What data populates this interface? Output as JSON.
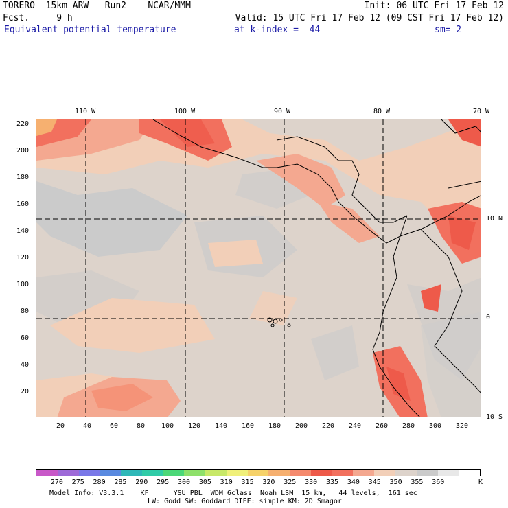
{
  "header": {
    "line1_left": "TORERO  15km ARW   Run2    NCAR/MMM",
    "line1_right": "Init: 06 UTC Fri 17 Feb 12",
    "line2_left": "Fcst.     9 h",
    "line2_right": "Valid: 15 UTC Fri 17 Feb 12 (09 CST Fri 17 Feb 12)",
    "field_name": "Equivalent potential temperature",
    "level": "at k-index =  44",
    "smoothing": "sm= 2"
  },
  "map": {
    "longitude_labels": [
      "110 W",
      "100 W",
      "90 W",
      "80 W",
      "70 W"
    ],
    "latitude_labels": [
      "10 N",
      "0",
      "10 S"
    ],
    "y_axis_labels": [
      "220",
      "200",
      "180",
      "160",
      "140",
      "120",
      "100",
      "80",
      "60",
      "40",
      "20"
    ],
    "x_axis_labels": [
      "20",
      "40",
      "60",
      "80",
      "100",
      "120",
      "140",
      "160",
      "180",
      "200",
      "220",
      "240",
      "260",
      "280",
      "300",
      "320"
    ]
  },
  "colorbar": {
    "unit": "K",
    "labels": [
      "270",
      "275",
      "280",
      "285",
      "290",
      "295",
      "300",
      "305",
      "310",
      "315",
      "320",
      "325",
      "330",
      "335",
      "340",
      "345",
      "350",
      "355",
      "360"
    ],
    "colors": [
      "#c858c8",
      "#9e6ad8",
      "#7a78e8",
      "#5a8ae0",
      "#2fb8b8",
      "#30cca8",
      "#4cd878",
      "#8ee06a",
      "#c8e868",
      "#f0f07a",
      "#f6d26a",
      "#f6b070",
      "#f58a6e",
      "#ee5a4a",
      "#f2705e",
      "#f4a890",
      "#f2cfb8",
      "#ddd3cb",
      "#cbcbcb",
      "#e8e8e8",
      "#ffffff"
    ]
  },
  "footer": {
    "line1": "Model Info: V3.3.1    KF      YSU PBL  WDM 6class  Noah LSM  15 km,   44 levels,  161 sec",
    "line2": "LW: Godd SW: Goddard DIFF: simple KM: 2D Smagor"
  }
}
